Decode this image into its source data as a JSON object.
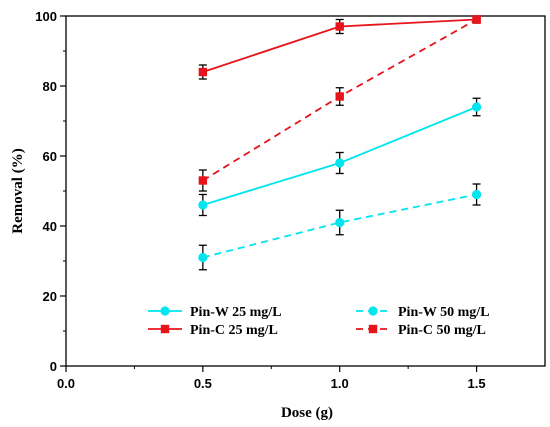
{
  "chart_data": {
    "type": "line",
    "xlabel": "Dose (g)",
    "ylabel": "Removal (%)",
    "xlim": [
      0,
      1.75
    ],
    "ylim": [
      0,
      100
    ],
    "x_ticks": [
      "0.0",
      "0.5",
      "1.0",
      "1.5"
    ],
    "y_ticks": [
      "0",
      "20",
      "40",
      "60",
      "80",
      "100"
    ],
    "grid": false,
    "legend_position": "bottom",
    "series": [
      {
        "name": "Pin-W 25 mg/L",
        "color": "#00e5ee",
        "line_style": "solid",
        "marker": "circle",
        "points": [
          {
            "x": 0.5,
            "y": 46,
            "err": 3
          },
          {
            "x": 1.0,
            "y": 58,
            "err": 3
          },
          {
            "x": 1.5,
            "y": 74,
            "err": 2.5
          }
        ]
      },
      {
        "name": "Pin-W 50 mg/L",
        "color": "#00e5ee",
        "line_style": "dashed",
        "marker": "circle",
        "points": [
          {
            "x": 0.5,
            "y": 31,
            "err": 3.5
          },
          {
            "x": 1.0,
            "y": 41,
            "err": 3.5
          },
          {
            "x": 1.5,
            "y": 49,
            "err": 3
          }
        ]
      },
      {
        "name": "Pin-C  25 mg/L",
        "color": "#e8141c",
        "line_style": "solid",
        "marker": "square",
        "points": [
          {
            "x": 0.5,
            "y": 84,
            "err": 2
          },
          {
            "x": 1.0,
            "y": 97,
            "err": 2
          },
          {
            "x": 1.5,
            "y": 99,
            "err": 0.8
          }
        ]
      },
      {
        "name": "Pin-C 50 mg/L",
        "color": "#e8141c",
        "line_style": "dashed",
        "marker": "square",
        "points": [
          {
            "x": 0.5,
            "y": 53,
            "err": 3
          },
          {
            "x": 1.0,
            "y": 77,
            "err": 2.5
          },
          {
            "x": 1.5,
            "y": 99,
            "err": 1
          }
        ]
      }
    ]
  }
}
